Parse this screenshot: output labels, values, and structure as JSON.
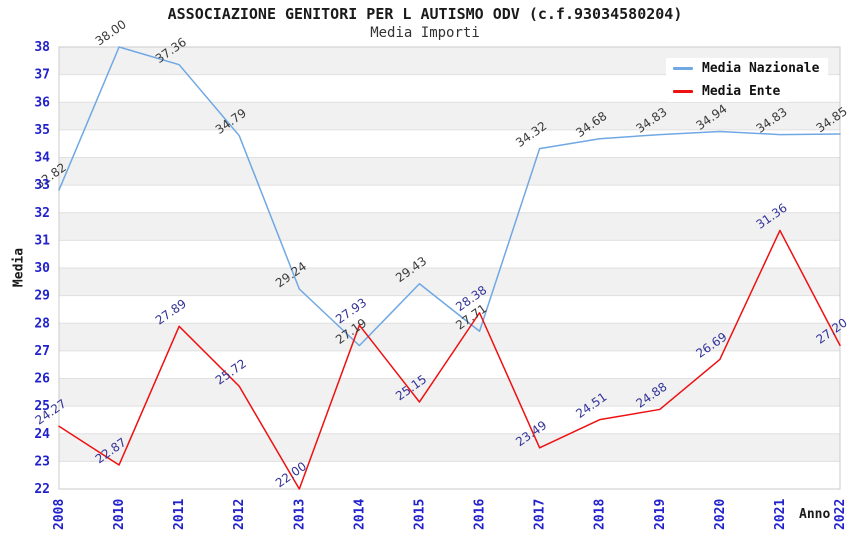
{
  "title": "ASSOCIAZIONE GENITORI PER L AUTISMO ODV (c.f.93034580204)",
  "subtitle": "Media Importi",
  "chart_data": {
    "type": "line",
    "title": "ASSOCIAZIONE GENITORI PER L AUTISMO ODV (c.f.93034580204)",
    "subtitle": "Media Importi",
    "xlabel": "Anno",
    "ylabel": "Media",
    "x": [
      2008,
      2010,
      2011,
      2012,
      2013,
      2014,
      2015,
      2016,
      2017,
      2018,
      2019,
      2020,
      2021,
      2022
    ],
    "y_ticks": [
      22,
      23,
      24,
      25,
      26,
      27,
      28,
      29,
      30,
      31,
      32,
      33,
      34,
      35,
      36,
      37,
      38
    ],
    "ylim": [
      22,
      38
    ],
    "grid": "striped-horizontal-bands",
    "legend_position": "top-right",
    "series": [
      {
        "name": "Media Nazionale",
        "color": "#6FA8E3",
        "label_color": "#3a3a3a",
        "values": [
          32.82,
          38.0,
          37.36,
          34.79,
          29.24,
          27.19,
          29.43,
          27.71,
          34.32,
          34.68,
          34.83,
          34.94,
          34.83,
          34.85
        ]
      },
      {
        "name": "Media Ente",
        "color": "#EE1111",
        "label_color": "#333399",
        "values": [
          24.27,
          22.87,
          27.89,
          25.72,
          22.0,
          27.93,
          25.15,
          28.38,
          23.49,
          24.51,
          24.88,
          26.69,
          31.36,
          27.2
        ]
      }
    ],
    "style": {
      "stripe_color": "#F1F1F1",
      "gridline_color": "#E0E0E0",
      "border_color": "#CBCBCB",
      "tick_label_color": "#2222CC"
    }
  }
}
